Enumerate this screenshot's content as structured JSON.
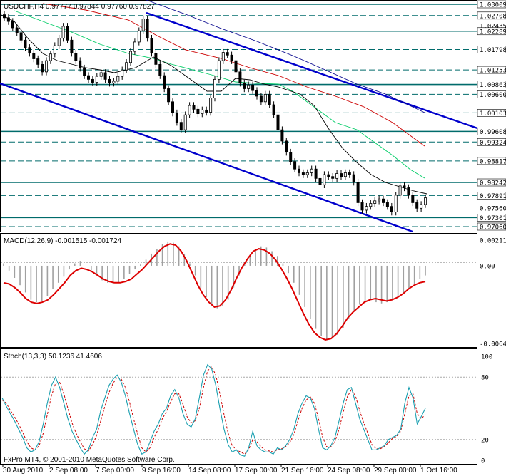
{
  "colors": {
    "background": "#ffffff",
    "frame": "#000000",
    "candle": "#000000",
    "channel": "#0000cc",
    "level_lines": "#006b6b",
    "ma_black": "#000000",
    "ma_blue": "#00008b",
    "ma_red": "#cc0000",
    "ma_green": "#00cc66",
    "macd_hist": "#a0a0a0",
    "macd_signal": "#dd0000",
    "stoch_main": "#1a9fb0",
    "stoch_signal": "#cc0000"
  },
  "main_panel": {
    "header": "USDCHF,H4  0.97777 0.97844 0.97760 0.97827",
    "y_ticks": [
      "1.03009",
      "1.02708",
      "1.02435",
      "1.02289",
      "1.01798",
      "1.01253",
      "1.00863",
      "1.00600",
      "1.00103",
      "0.99608",
      "0.99324",
      "0.98817",
      "0.98242",
      "0.97891",
      "0.97560",
      "0.97301",
      "0.97060"
    ],
    "highlighted_ticks": [
      "1.03009",
      "1.02708",
      "1.02289",
      "1.01798",
      "1.01253",
      "1.00863",
      "1.00600",
      "1.00103",
      "0.99608",
      "0.99324",
      "0.98817",
      "0.98242",
      "0.97891",
      "0.97301",
      "0.97060"
    ]
  },
  "macd_panel": {
    "header": "MACD(12,26,9) -0.001515 -0.001724",
    "y_ticks": [
      "0.00211",
      "0.00",
      "-0.0064"
    ]
  },
  "stoch_panel": {
    "header": "Stoch(13,3,3) 50.1236 41.4606",
    "y_ticks": [
      "100",
      "80",
      "20",
      "0"
    ]
  },
  "x_axis": {
    "labels": [
      "30 Aug 2010",
      "2 Sep 08:00",
      "7 Sep 00:00",
      "9 Sep 16:00",
      "14 Sep 08:00",
      "17 Sep 00:00",
      "21 Sep 16:00",
      "24 Sep 08:00",
      "29 Sep 00:00",
      "1 Oct 16:00"
    ]
  },
  "footer": "FxPro MT4, © 2001-2010 MetaQuotes Software Corp.",
  "chart_data": {
    "type": "line",
    "price": {
      "series": [
        {
          "values": [
            1.0265,
            1.0255,
            1.0238,
            1.0225,
            1.0205,
            1.0185,
            1.017,
            1.0155,
            1.014,
            1.012,
            1.015,
            1.0168,
            1.019,
            1.021,
            1.0242,
            1.0205,
            1.017,
            1.015,
            1.013,
            1.011,
            1.01,
            1.0092,
            1.0108,
            1.0118,
            1.01,
            1.009,
            1.0095,
            1.0108,
            1.0125,
            1.0145,
            1.0175,
            1.02,
            1.023,
            1.0262,
            1.021,
            1.017,
            1.014,
            1.011,
            1.0075,
            1.004,
            1.001,
            0.9985,
            0.9965,
            1.0005,
            1.003,
            1.002,
            1.0008,
            1.0018,
            1.0012,
            1.005,
            1.01,
            1.015,
            1.0172,
            1.0165,
            1.015,
            1.012,
            1.009,
            1.0075,
            1.0085,
            1.007,
            1.0055,
            1.004,
            1.006,
            1.0032,
            1.0005,
            0.9965,
            0.9935,
            0.9905,
            0.988,
            0.986,
            0.985,
            0.9845,
            0.985,
            0.986,
            0.9835,
            0.9818,
            0.9845,
            0.984,
            0.9835,
            0.9848,
            0.984,
            0.985,
            0.9845,
            0.9825,
            0.977,
            0.975,
            0.976,
            0.9768,
            0.9775,
            0.978,
            0.977,
            0.976,
            0.9745,
            0.979,
            0.9815,
            0.981,
            0.979,
            0.977,
            0.9755,
            0.9765,
            0.9783
          ]
        }
      ]
    },
    "macd": {
      "histogram": [
        0.0002,
        -0.0004,
        -0.001,
        -0.0016,
        -0.0022,
        -0.0028,
        -0.003,
        -0.0029,
        -0.0025,
        -0.0019,
        -0.0014,
        -0.0009,
        -0.0003,
        0.0002,
        0.0004,
        0.0,
        -0.0004,
        -0.0008,
        -0.0012,
        -0.0014,
        -0.0015,
        -0.0014,
        -0.0011,
        -0.0007,
        -0.0003,
        0.0001,
        0.0005,
        0.001,
        0.0014,
        0.0018,
        0.002,
        0.0019,
        0.0016,
        0.001,
        0.0002,
        -0.0008,
        -0.0018,
        -0.0026,
        -0.0032,
        -0.0035,
        -0.0033,
        -0.0028,
        -0.0018,
        -0.0008,
        0.0002,
        0.0009,
        0.0014,
        0.0016,
        0.0015,
        0.0012,
        0.0008,
        0.0002,
        -0.0006,
        -0.0014,
        -0.0024,
        -0.0034,
        -0.0044,
        -0.0052,
        -0.0058,
        -0.0061,
        -0.006,
        -0.0057,
        -0.0051,
        -0.0044,
        -0.0037,
        -0.0032,
        -0.0029,
        -0.0028,
        -0.003,
        -0.0031,
        -0.003,
        -0.0028,
        -0.0026,
        -0.0023,
        -0.0019,
        -0.0015,
        -0.0011,
        -0.0008
      ],
      "signal": [
        -0.0014,
        -0.0015,
        -0.0018,
        -0.0022,
        -0.0027,
        -0.003,
        -0.0031,
        -0.003,
        -0.0028,
        -0.0024,
        -0.0019,
        -0.0014,
        -0.0008,
        -0.0004,
        -0.0002,
        -0.0003,
        -0.0005,
        -0.0008,
        -0.0011,
        -0.0013,
        -0.0014,
        -0.0014,
        -0.0013,
        -0.0011,
        -0.0007,
        -0.0003,
        0.0002,
        0.0007,
        0.0012,
        0.0016,
        0.0018,
        0.0017,
        0.0012,
        0.0004,
        -0.0006,
        -0.0016,
        -0.0024,
        -0.003,
        -0.0034,
        -0.0033,
        -0.0028,
        -0.002,
        -0.001,
        -0.0001,
        0.0006,
        0.0012,
        0.0014,
        0.0013,
        0.001,
        0.0005,
        -0.0002,
        -0.001,
        -0.0019,
        -0.0029,
        -0.0039,
        -0.0048,
        -0.0055,
        -0.0059,
        -0.0061,
        -0.006,
        -0.0056,
        -0.005,
        -0.0043,
        -0.0038,
        -0.0034,
        -0.003,
        -0.0028,
        -0.0027,
        -0.0028,
        -0.0029,
        -0.0028,
        -0.0026,
        -0.0023,
        -0.0019,
        -0.0016,
        -0.0014,
        -0.0013
      ]
    },
    "stochastic": {
      "main": [
        60,
        52,
        45,
        38,
        30,
        22,
        12,
        8,
        10,
        18,
        35,
        55,
        72,
        80,
        70,
        55,
        40,
        28,
        20,
        12,
        6,
        10,
        22,
        30,
        48,
        60,
        72,
        78,
        82,
        75,
        62,
        45,
        30,
        15,
        6,
        8,
        18,
        28,
        35,
        45,
        50,
        62,
        68,
        60,
        45,
        35,
        32,
        40,
        60,
        82,
        92,
        88,
        72,
        50,
        30,
        15,
        8,
        10,
        5,
        4,
        12,
        28,
        14,
        10,
        8,
        8,
        6,
        12,
        10,
        14,
        20,
        30,
        45,
        55,
        62,
        60,
        50,
        30,
        12,
        10,
        14,
        22,
        38,
        55,
        68,
        70,
        55,
        40,
        30,
        20,
        10,
        10,
        12,
        14,
        20,
        22,
        24,
        30,
        55,
        70,
        60,
        35,
        42,
        50
      ],
      "signal": [
        58,
        55,
        48,
        42,
        35,
        27,
        18,
        12,
        10,
        14,
        26,
        44,
        62,
        74,
        75,
        64,
        50,
        36,
        26,
        18,
        11,
        9,
        15,
        24,
        38,
        52,
        65,
        74,
        80,
        78,
        70,
        56,
        40,
        25,
        12,
        8,
        12,
        22,
        30,
        40,
        47,
        56,
        64,
        64,
        54,
        42,
        36,
        38,
        50,
        70,
        86,
        90,
        82,
        64,
        44,
        26,
        14,
        10,
        8,
        6,
        10,
        20,
        18,
        13,
        10,
        9,
        8,
        10,
        11,
        13,
        17,
        25,
        38,
        50,
        58,
        61,
        55,
        40,
        22,
        13,
        13,
        18,
        30,
        46,
        61,
        68,
        62,
        48,
        36,
        26,
        15,
        11,
        11,
        13,
        17,
        21,
        23,
        28,
        45,
        62,
        64,
        45,
        40,
        44
      ]
    }
  }
}
